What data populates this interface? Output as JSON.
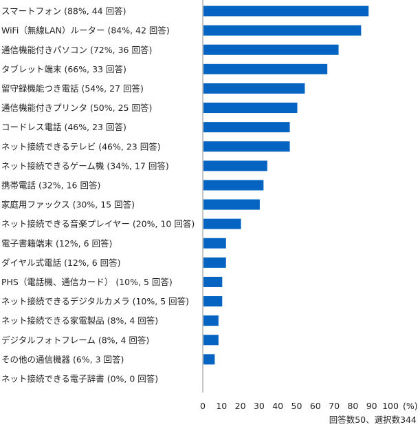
{
  "chart_data": {
    "type": "bar",
    "orientation": "horizontal",
    "categories": [
      "スマートフォン (88%, 44 回答)",
      "WiFi（無線LAN）ルーター (84%, 42 回答)",
      "通信機能付きパソコン (72%, 36 回答)",
      "タブレット端末 (66%, 33 回答)",
      "留守録機能つき電話 (54%, 27 回答)",
      "通信機能付きプリンタ (50%, 25 回答)",
      "コードレス電話 (46%, 23 回答)",
      "ネット接続できるテレビ (46%, 23 回答)",
      "ネット接続できるゲーム機 (34%, 17 回答)",
      "携帯電話 (32%, 16 回答)",
      "家庭用ファックス (30%, 15 回答)",
      "ネット接続できる音楽プレイヤー (20%, 10 回答)",
      "電子書籍端末 (12%, 6 回答)",
      "ダイヤル式電話 (12%, 6 回答)",
      "PHS（電話機、通信カード） (10%, 5 回答)",
      "ネット接続できるデジタルカメラ (10%, 5 回答)",
      "ネット接続できる家電製品 (8%, 4 回答)",
      "デジタルフォトフレーム (8%, 4 回答)",
      "その他の通信機器 (6%, 3 回答)",
      "ネット接続できる電子辞書 (0%, 0 回答)"
    ],
    "values": [
      88,
      84,
      72,
      66,
      54,
      50,
      46,
      46,
      34,
      32,
      30,
      20,
      12,
      12,
      10,
      10,
      8,
      8,
      6,
      0
    ],
    "xlim": [
      0,
      100
    ],
    "xticks": [
      0,
      10,
      20,
      30,
      40,
      50,
      60,
      70,
      80,
      90,
      100
    ],
    "xunit": "(%)",
    "grid": false,
    "legend": "none",
    "bar_color": "#0563c1",
    "footnote": "回答数50、選択数344"
  }
}
